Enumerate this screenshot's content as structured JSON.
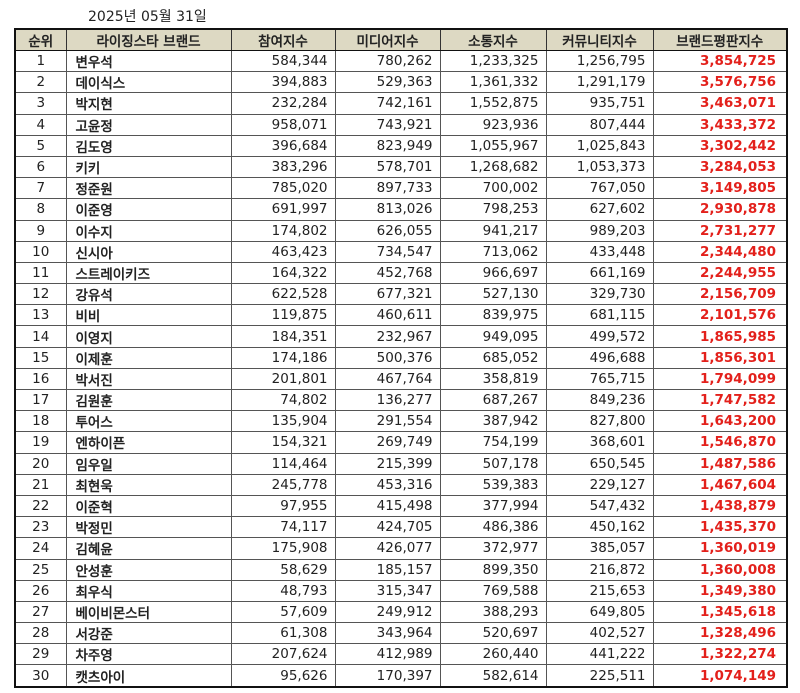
{
  "date": "2025년 05월 31일",
  "table": {
    "headers": [
      "순위",
      "라이징스타 브랜드",
      "참여지수",
      "미디어지수",
      "소통지수",
      "커뮤니티지수",
      "브랜드평판지수"
    ],
    "rows": [
      {
        "rank": "1",
        "brand": "변우석",
        "participation": "584,344",
        "media": "780,262",
        "communication": "1,233,325",
        "community": "1,256,795",
        "reputation": "3,854,725"
      },
      {
        "rank": "2",
        "brand": "데이식스",
        "participation": "394,883",
        "media": "529,363",
        "communication": "1,361,332",
        "community": "1,291,179",
        "reputation": "3,576,756"
      },
      {
        "rank": "3",
        "brand": "박지현",
        "participation": "232,284",
        "media": "742,161",
        "communication": "1,552,875",
        "community": "935,751",
        "reputation": "3,463,071"
      },
      {
        "rank": "4",
        "brand": "고윤정",
        "participation": "958,071",
        "media": "743,921",
        "communication": "923,936",
        "community": "807,444",
        "reputation": "3,433,372"
      },
      {
        "rank": "5",
        "brand": "김도영",
        "participation": "396,684",
        "media": "823,949",
        "communication": "1,055,967",
        "community": "1,025,843",
        "reputation": "3,302,442"
      },
      {
        "rank": "6",
        "brand": "키키",
        "participation": "383,296",
        "media": "578,701",
        "communication": "1,268,682",
        "community": "1,053,373",
        "reputation": "3,284,053"
      },
      {
        "rank": "7",
        "brand": "정준원",
        "participation": "785,020",
        "media": "897,733",
        "communication": "700,002",
        "community": "767,050",
        "reputation": "3,149,805"
      },
      {
        "rank": "8",
        "brand": "이준영",
        "participation": "691,997",
        "media": "813,026",
        "communication": "798,253",
        "community": "627,602",
        "reputation": "2,930,878"
      },
      {
        "rank": "9",
        "brand": "이수지",
        "participation": "174,802",
        "media": "626,055",
        "communication": "941,217",
        "community": "989,203",
        "reputation": "2,731,277"
      },
      {
        "rank": "10",
        "brand": "신시아",
        "participation": "463,423",
        "media": "734,547",
        "communication": "713,062",
        "community": "433,448",
        "reputation": "2,344,480"
      },
      {
        "rank": "11",
        "brand": "스트레이키즈",
        "participation": "164,322",
        "media": "452,768",
        "communication": "966,697",
        "community": "661,169",
        "reputation": "2,244,955"
      },
      {
        "rank": "12",
        "brand": "강유석",
        "participation": "622,528",
        "media": "677,321",
        "communication": "527,130",
        "community": "329,730",
        "reputation": "2,156,709"
      },
      {
        "rank": "13",
        "brand": "비비",
        "participation": "119,875",
        "media": "460,611",
        "communication": "839,975",
        "community": "681,115",
        "reputation": "2,101,576"
      },
      {
        "rank": "14",
        "brand": "이영지",
        "participation": "184,351",
        "media": "232,967",
        "communication": "949,095",
        "community": "499,572",
        "reputation": "1,865,985"
      },
      {
        "rank": "15",
        "brand": "이제훈",
        "participation": "174,186",
        "media": "500,376",
        "communication": "685,052",
        "community": "496,688",
        "reputation": "1,856,301"
      },
      {
        "rank": "16",
        "brand": "박서진",
        "participation": "201,801",
        "media": "467,764",
        "communication": "358,819",
        "community": "765,715",
        "reputation": "1,794,099"
      },
      {
        "rank": "17",
        "brand": "김원훈",
        "participation": "74,802",
        "media": "136,277",
        "communication": "687,267",
        "community": "849,236",
        "reputation": "1,747,582"
      },
      {
        "rank": "18",
        "brand": "투어스",
        "participation": "135,904",
        "media": "291,554",
        "communication": "387,942",
        "community": "827,800",
        "reputation": "1,643,200"
      },
      {
        "rank": "19",
        "brand": "엔하이픈",
        "participation": "154,321",
        "media": "269,749",
        "communication": "754,199",
        "community": "368,601",
        "reputation": "1,546,870"
      },
      {
        "rank": "20",
        "brand": "임우일",
        "participation": "114,464",
        "media": "215,399",
        "communication": "507,178",
        "community": "650,545",
        "reputation": "1,487,586"
      },
      {
        "rank": "21",
        "brand": "최현욱",
        "participation": "245,778",
        "media": "453,316",
        "communication": "539,383",
        "community": "229,127",
        "reputation": "1,467,604"
      },
      {
        "rank": "22",
        "brand": "이준혁",
        "participation": "97,955",
        "media": "415,498",
        "communication": "377,994",
        "community": "547,432",
        "reputation": "1,438,879"
      },
      {
        "rank": "23",
        "brand": "박정민",
        "participation": "74,117",
        "media": "424,705",
        "communication": "486,386",
        "community": "450,162",
        "reputation": "1,435,370"
      },
      {
        "rank": "24",
        "brand": "김혜윤",
        "participation": "175,908",
        "media": "426,077",
        "communication": "372,977",
        "community": "385,057",
        "reputation": "1,360,019"
      },
      {
        "rank": "25",
        "brand": "안성훈",
        "participation": "58,629",
        "media": "185,157",
        "communication": "899,350",
        "community": "216,872",
        "reputation": "1,360,008"
      },
      {
        "rank": "26",
        "brand": "최우식",
        "participation": "48,793",
        "media": "315,347",
        "communication": "769,588",
        "community": "215,653",
        "reputation": "1,349,380"
      },
      {
        "rank": "27",
        "brand": "베이비몬스터",
        "participation": "57,609",
        "media": "249,912",
        "communication": "388,293",
        "community": "649,805",
        "reputation": "1,345,618"
      },
      {
        "rank": "28",
        "brand": "서강준",
        "participation": "61,308",
        "media": "343,964",
        "communication": "520,697",
        "community": "402,527",
        "reputation": "1,328,496"
      },
      {
        "rank": "29",
        "brand": "차주영",
        "participation": "207,624",
        "media": "412,989",
        "communication": "260,440",
        "community": "441,222",
        "reputation": "1,322,274"
      },
      {
        "rank": "30",
        "brand": "캣츠아이",
        "participation": "95,626",
        "media": "170,397",
        "communication": "582,614",
        "community": "225,511",
        "reputation": "1,074,149"
      }
    ]
  },
  "colors": {
    "header_bg": "#ddd9c3",
    "reputation_text": "#e3201b",
    "border": "#111111"
  }
}
